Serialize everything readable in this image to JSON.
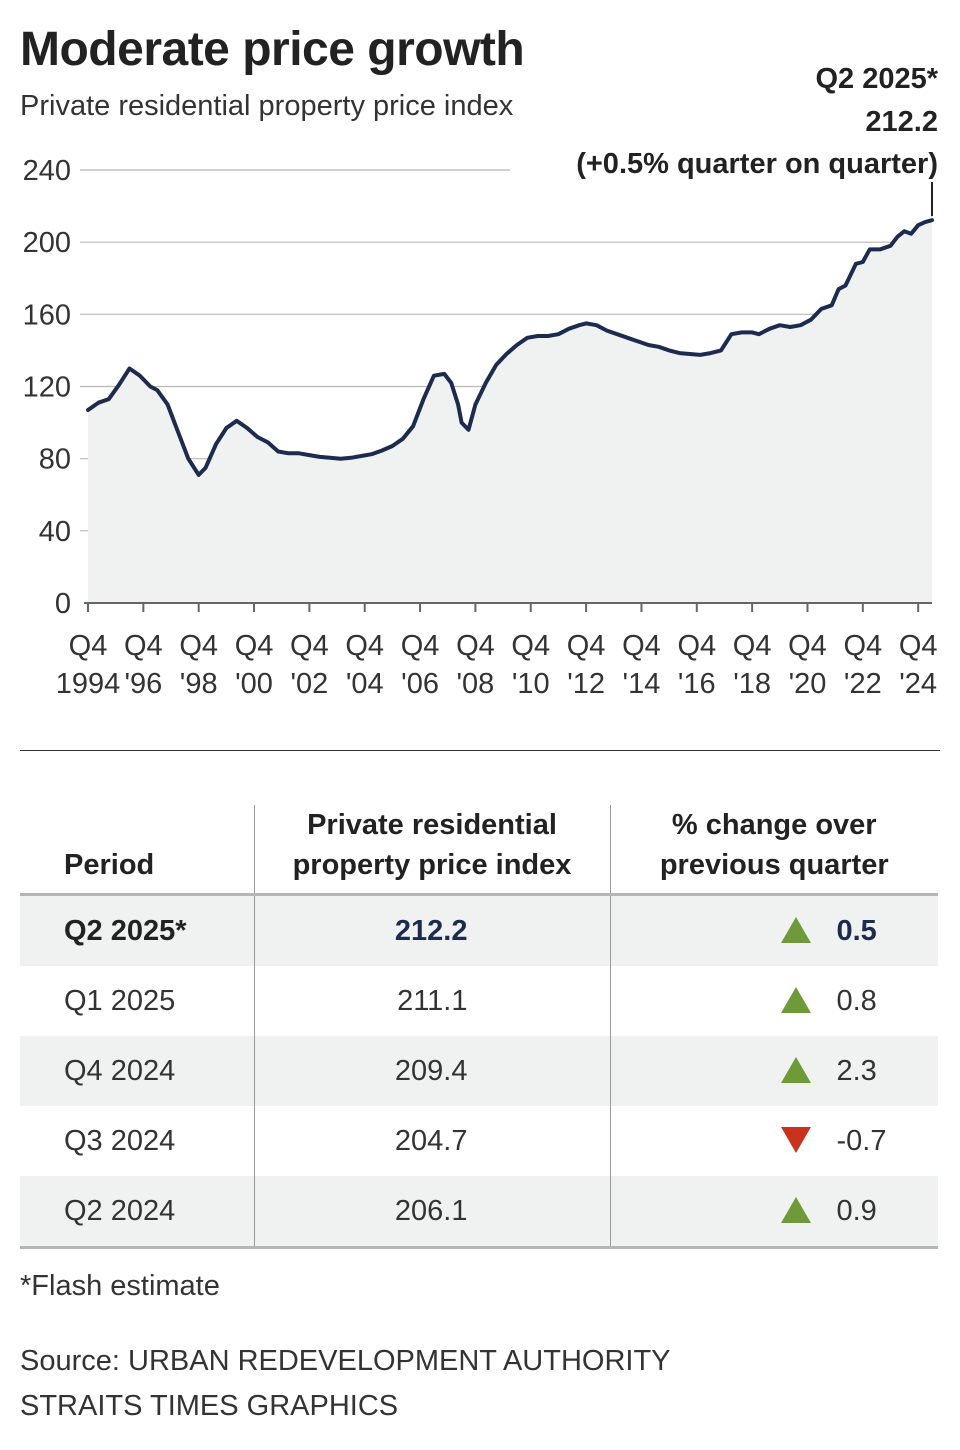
{
  "title": "Moderate price growth",
  "subtitle": "Private residential property price index",
  "chart_data": {
    "type": "area",
    "title": "Moderate price growth",
    "subtitle": "Private residential property price index",
    "ylim": [
      0,
      240
    ],
    "yticks": [
      "0",
      "40",
      "80",
      "120",
      "160",
      "200",
      "240"
    ],
    "xticks": [
      {
        "top": "Q4",
        "bottom": "1994",
        "x": 1994.875
      },
      {
        "top": "Q4",
        "bottom": "'96",
        "x": 1996.875
      },
      {
        "top": "Q4",
        "bottom": "'98",
        "x": 1998.875
      },
      {
        "top": "Q4",
        "bottom": "'00",
        "x": 2000.875
      },
      {
        "top": "Q4",
        "bottom": "'02",
        "x": 2002.875
      },
      {
        "top": "Q4",
        "bottom": "'04",
        "x": 2004.875
      },
      {
        "top": "Q4",
        "bottom": "'06",
        "x": 2006.875
      },
      {
        "top": "Q4",
        "bottom": "'08",
        "x": 2008.875
      },
      {
        "top": "Q4",
        "bottom": "'10",
        "x": 2010.875
      },
      {
        "top": "Q4",
        "bottom": "'12",
        "x": 2012.875
      },
      {
        "top": "Q4",
        "bottom": "'14",
        "x": 2014.875
      },
      {
        "top": "Q4",
        "bottom": "'16",
        "x": 2016.875
      },
      {
        "top": "Q4",
        "bottom": "'18",
        "x": 2018.875
      },
      {
        "top": "Q4",
        "bottom": "'20",
        "x": 2020.875
      },
      {
        "top": "Q4",
        "bottom": "'22",
        "x": 2022.875
      },
      {
        "top": "Q4",
        "bottom": "'24",
        "x": 2024.875
      }
    ],
    "grid": true,
    "series": [
      {
        "name": "Private residential property price index",
        "points": [
          [
            1994.875,
            107
          ],
          [
            1995.25,
            111
          ],
          [
            1995.625,
            113
          ],
          [
            1996.0,
            121
          ],
          [
            1996.375,
            130
          ],
          [
            1996.75,
            126
          ],
          [
            1997.125,
            120
          ],
          [
            1997.375,
            118
          ],
          [
            1997.75,
            110
          ],
          [
            1998.125,
            95
          ],
          [
            1998.5,
            80
          ],
          [
            1998.875,
            71
          ],
          [
            1999.125,
            75
          ],
          [
            1999.5,
            88
          ],
          [
            1999.875,
            97
          ],
          [
            2000.25,
            101
          ],
          [
            2000.625,
            97
          ],
          [
            2001.0,
            92
          ],
          [
            2001.375,
            89
          ],
          [
            2001.75,
            84
          ],
          [
            2002.125,
            83
          ],
          [
            2002.5,
            83
          ],
          [
            2002.875,
            82
          ],
          [
            2003.25,
            81
          ],
          [
            2003.625,
            80.5
          ],
          [
            2004.0,
            80
          ],
          [
            2004.375,
            80.5
          ],
          [
            2004.75,
            81.5
          ],
          [
            2005.125,
            82.5
          ],
          [
            2005.5,
            84.5
          ],
          [
            2005.875,
            87
          ],
          [
            2006.25,
            91
          ],
          [
            2006.625,
            98
          ],
          [
            2007.0,
            113
          ],
          [
            2007.375,
            126
          ],
          [
            2007.75,
            127
          ],
          [
            2008.0,
            122
          ],
          [
            2008.25,
            110
          ],
          [
            2008.375,
            100
          ],
          [
            2008.625,
            96
          ],
          [
            2008.875,
            110
          ],
          [
            2009.25,
            122
          ],
          [
            2009.625,
            132
          ],
          [
            2010.0,
            138
          ],
          [
            2010.375,
            143
          ],
          [
            2010.75,
            147
          ],
          [
            2011.125,
            148
          ],
          [
            2011.5,
            148
          ],
          [
            2011.875,
            149
          ],
          [
            2012.25,
            152
          ],
          [
            2012.625,
            154
          ],
          [
            2012.875,
            155
          ],
          [
            2013.25,
            154
          ],
          [
            2013.625,
            151
          ],
          [
            2014.0,
            149
          ],
          [
            2014.375,
            147
          ],
          [
            2014.75,
            145
          ],
          [
            2015.125,
            143
          ],
          [
            2015.5,
            142
          ],
          [
            2015.875,
            140
          ],
          [
            2016.25,
            138.5
          ],
          [
            2016.625,
            138
          ],
          [
            2017.0,
            137.5
          ],
          [
            2017.375,
            138.5
          ],
          [
            2017.75,
            140
          ],
          [
            2018.125,
            149
          ],
          [
            2018.5,
            150
          ],
          [
            2018.875,
            150
          ],
          [
            2019.125,
            149
          ],
          [
            2019.5,
            152
          ],
          [
            2019.875,
            154
          ],
          [
            2020.25,
            153
          ],
          [
            2020.625,
            154
          ],
          [
            2021.0,
            157
          ],
          [
            2021.375,
            163
          ],
          [
            2021.75,
            165
          ],
          [
            2022.0,
            174
          ],
          [
            2022.25,
            176
          ],
          [
            2022.625,
            188
          ],
          [
            2022.875,
            189
          ],
          [
            2023.125,
            196
          ],
          [
            2023.5,
            196
          ],
          [
            2023.875,
            198
          ],
          [
            2024.125,
            203
          ],
          [
            2024.375,
            206.1
          ],
          [
            2024.625,
            204.7
          ],
          [
            2024.875,
            209.4
          ],
          [
            2025.125,
            211.1
          ],
          [
            2025.375,
            212.2
          ]
        ]
      }
    ],
    "annotation": {
      "label": "Q2 2025*",
      "value": "212.2",
      "change": "(+0.5% quarter on quarter)",
      "x": 2025.375,
      "y": 212.2
    }
  },
  "table": {
    "headers": {
      "period": "Period",
      "index_line1": "Private residential",
      "index_line2": "property price index",
      "change_line1": "% change over",
      "change_line2": "previous quarter"
    },
    "rows": [
      {
        "period": "Q2 2025*",
        "index": "212.2",
        "change": "0.5",
        "direction": "up"
      },
      {
        "period": "Q1 2025",
        "index": "211.1",
        "change": "0.8",
        "direction": "up"
      },
      {
        "period": "Q4 2024",
        "index": "209.4",
        "change": "2.3",
        "direction": "up"
      },
      {
        "period": "Q3 2024",
        "index": "204.7",
        "change": "-0.7",
        "direction": "down"
      },
      {
        "period": "Q2 2024",
        "index": "206.1",
        "change": "0.9",
        "direction": "up"
      }
    ]
  },
  "footnote": "*Flash estimate",
  "source": "Source: URBAN REDEVELOPMENT AUTHORITY",
  "credit": "STRAITS TIMES GRAPHICS",
  "colors": {
    "line": "#1c2b4e",
    "area": "#f0f2f2",
    "up": "#6f9a3a",
    "down": "#c8321e"
  }
}
